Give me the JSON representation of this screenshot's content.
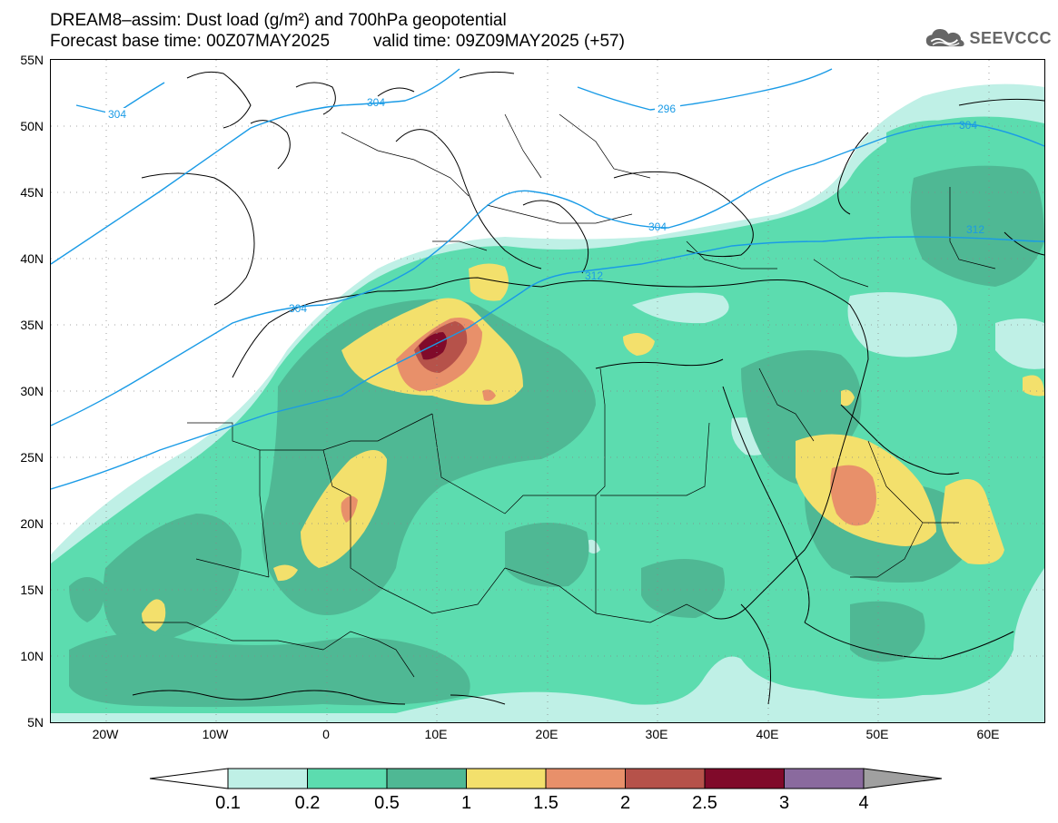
{
  "header": {
    "title_line1": "DREAM8–assim: Dust load (g/m²) and 700hPa geopotential",
    "title_line2_base": "Forecast base time: 00Z07MAY2025",
    "title_line2_valid": "valid time: 09Z09MAY2025 (+57)",
    "logo_text": "SEEVCCC",
    "logo_icon": "cloud-icon"
  },
  "map": {
    "lat_labels": [
      "55N",
      "50N",
      "45N",
      "40N",
      "35N",
      "30N",
      "25N",
      "20N",
      "15N",
      "10N",
      "5N"
    ],
    "lon_labels": [
      "20W",
      "10W",
      "0",
      "10E",
      "20E",
      "30E",
      "40E",
      "50E",
      "60E"
    ],
    "contour_labels": [
      "304",
      "304",
      "296",
      "304",
      "304",
      "312",
      "312",
      "304"
    ],
    "contour_color": "#1a9be6",
    "dust_colors": {
      "0.1": "#bff0e6",
      "0.2": "#5cdcaf",
      "0.5": "#4fb894",
      "1": "#f3e06c",
      "1.5": "#e8906a",
      "2": "#b6524a",
      "2.5": "#800a2a",
      "3": "#8a6a9e",
      "4": "#a0a0a0"
    }
  },
  "colorbar": {
    "labels": [
      "0.1",
      "0.2",
      "0.5",
      "1",
      "1.5",
      "2",
      "2.5",
      "3",
      "4"
    ],
    "colors": [
      "#bff0e6",
      "#5cdcaf",
      "#4fb894",
      "#f3e06c",
      "#e8906a",
      "#b6524a",
      "#800a2a",
      "#8a6a9e"
    ],
    "low_arrow_color": "#ffffff",
    "high_arrow_color": "#a0a0a0"
  }
}
